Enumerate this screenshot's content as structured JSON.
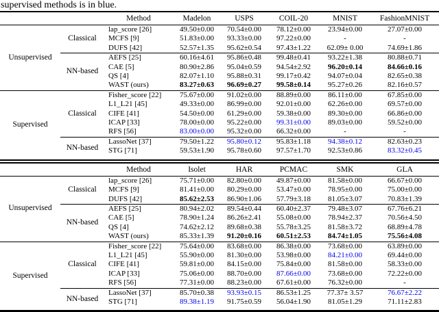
{
  "caption": "supervised methods is in blue.",
  "colors": {
    "highlight_blue": "#0000ee",
    "text": "#000000"
  },
  "tables": [
    {
      "columns": [
        "Method",
        "Madelon",
        "USPS",
        "COIL-20",
        "MNIST",
        "FashionMNIST"
      ],
      "groups": [
        {
          "label": "Unsupervised",
          "subgroups": [
            {
              "label": "Classical",
              "rows": [
                {
                  "method": "lap_score [26]",
                  "values": [
                    {
                      "t": "49.50±0.00"
                    },
                    {
                      "t": "70.54±0.00"
                    },
                    {
                      "t": "78.12±0.00"
                    },
                    {
                      "t": "23.94±0.00"
                    },
                    {
                      "t": "27.07±0.00"
                    }
                  ]
                },
                {
                  "method": "MCFS [9]",
                  "values": [
                    {
                      "t": "51.83±0.00"
                    },
                    {
                      "t": "93.33±0.00"
                    },
                    {
                      "t": "97.22±0.00"
                    },
                    {
                      "t": "-"
                    },
                    {
                      "t": "-"
                    }
                  ]
                },
                {
                  "method": "DUFS [42]",
                  "values": [
                    {
                      "t": "52.57±1.35"
                    },
                    {
                      "t": "95.62±0.54"
                    },
                    {
                      "t": "97.43±1.22"
                    },
                    {
                      "t": "62.09± 0.00"
                    },
                    {
                      "t": "74.69±1.86"
                    }
                  ]
                }
              ]
            },
            {
              "label": "NN-based",
              "rows": [
                {
                  "method": "AEFS [25]",
                  "values": [
                    {
                      "t": "60.16±4.61"
                    },
                    {
                      "t": "95.86±0.48"
                    },
                    {
                      "t": "99.48±0.41"
                    },
                    {
                      "t": "93.22±1.38"
                    },
                    {
                      "t": "80.88±0.71"
                    }
                  ]
                },
                {
                  "method": "CAE [5]",
                  "values": [
                    {
                      "t": "80.90±2.86"
                    },
                    {
                      "t": "95.04±0.59"
                    },
                    {
                      "t": "94.54±2.92"
                    },
                    {
                      "t": "96.20±0.14",
                      "s": "bold"
                    },
                    {
                      "t": "84.66±0.16",
                      "s": "bold"
                    }
                  ]
                },
                {
                  "method": "QS [4]",
                  "values": [
                    {
                      "t": "82.07±1.10"
                    },
                    {
                      "t": "95.88±0.31"
                    },
                    {
                      "t": "99.17±0.42"
                    },
                    {
                      "t": "94.07±0.04"
                    },
                    {
                      "t": "82.65±0.38"
                    }
                  ]
                },
                {
                  "method": "WAST (ours)",
                  "values": [
                    {
                      "t": "83.27±0.63",
                      "s": "bold"
                    },
                    {
                      "t": "96.69±0.27",
                      "s": "bold"
                    },
                    {
                      "t": "99.58±0.14",
                      "s": "bold"
                    },
                    {
                      "t": "95.27±0.26"
                    },
                    {
                      "t": "82.16±0.57"
                    }
                  ]
                }
              ]
            }
          ]
        },
        {
          "label": "Supervised",
          "subgroups": [
            {
              "label": "Classical",
              "rows": [
                {
                  "method": "Fisher_score [22]",
                  "values": [
                    {
                      "t": "75.67±0.00"
                    },
                    {
                      "t": "91.02±0.00"
                    },
                    {
                      "t": "88.89±0.00"
                    },
                    {
                      "t": "86.11±0.00"
                    },
                    {
                      "t": "67.85±0.00"
                    }
                  ]
                },
                {
                  "method": "L1_L21 [45]",
                  "values": [
                    {
                      "t": "49.33±0.00"
                    },
                    {
                      "t": "86.99±0.00"
                    },
                    {
                      "t": "92.01±0.00"
                    },
                    {
                      "t": "62.26±0.00"
                    },
                    {
                      "t": "69.57±0.00"
                    }
                  ]
                },
                {
                  "method": "CIFE [41]",
                  "values": [
                    {
                      "t": "54.50±0.00"
                    },
                    {
                      "t": "61.29±0.00"
                    },
                    {
                      "t": "59.38±0.00"
                    },
                    {
                      "t": "89.30±0.00"
                    },
                    {
                      "t": "66.86±0.00"
                    }
                  ]
                },
                {
                  "method": "ICAP [33]",
                  "values": [
                    {
                      "t": "78.00±0.00"
                    },
                    {
                      "t": "95.22±0.00"
                    },
                    {
                      "t": "99.31±0.00",
                      "s": "blue"
                    },
                    {
                      "t": "89.03±0.00"
                    },
                    {
                      "t": "59.52±0.00"
                    }
                  ]
                },
                {
                  "method": "RFS [56]",
                  "values": [
                    {
                      "t": "83.00±0.00",
                      "s": "blue"
                    },
                    {
                      "t": "95.32±0.00"
                    },
                    {
                      "t": "66.32±0.00"
                    },
                    {
                      "t": "-"
                    },
                    {
                      "t": "-"
                    }
                  ]
                }
              ]
            },
            {
              "label": "NN-based",
              "rows": [
                {
                  "method": "LassoNet [37]",
                  "values": [
                    {
                      "t": "79.50±1.22"
                    },
                    {
                      "t": "95.80±0.12",
                      "s": "blue"
                    },
                    {
                      "t": "95.83±1.18"
                    },
                    {
                      "t": "94.38±0.12",
                      "s": "blue"
                    },
                    {
                      "t": "82.63±0.23"
                    }
                  ]
                },
                {
                  "method": "STG [71]",
                  "values": [
                    {
                      "t": "59.53±1.90"
                    },
                    {
                      "t": "95.78±0.60"
                    },
                    {
                      "t": "97.57±1.70"
                    },
                    {
                      "t": "92.53±0.86"
                    },
                    {
                      "t": "83.32±0.45",
                      "s": "blue"
                    }
                  ]
                }
              ]
            }
          ]
        }
      ]
    },
    {
      "columns": [
        "Method",
        "Isolet",
        "HAR",
        "PCMAC",
        "SMK",
        "GLA"
      ],
      "groups": [
        {
          "label": "Unsupervised",
          "subgroups": [
            {
              "label": "Classical",
              "rows": [
                {
                  "method": "lap_score [26]",
                  "values": [
                    {
                      "t": "75.71±0.00"
                    },
                    {
                      "t": "82.80±0.00"
                    },
                    {
                      "t": "49.87±0.00"
                    },
                    {
                      "t": "81.58±0.00"
                    },
                    {
                      "t": "66.67±0.00"
                    }
                  ]
                },
                {
                  "method": "MCFS [9]",
                  "values": [
                    {
                      "t": "81.41±0.00"
                    },
                    {
                      "t": "80.29±0.00"
                    },
                    {
                      "t": "53.47±0.00"
                    },
                    {
                      "t": "78.95±0.00"
                    },
                    {
                      "t": "75.00±0.00"
                    }
                  ]
                },
                {
                  "method": "DUFS [42]",
                  "values": [
                    {
                      "t": "85.62±2.53",
                      "s": "bold"
                    },
                    {
                      "t": "86.90±1.06"
                    },
                    {
                      "t": "57.79±3.18"
                    },
                    {
                      "t": "81.05±3.07"
                    },
                    {
                      "t": "70.83±1.39"
                    }
                  ]
                }
              ]
            },
            {
              "label": "NN-based",
              "rows": [
                {
                  "method": "AEFS [25]",
                  "values": [
                    {
                      "t": "80.94±2.02"
                    },
                    {
                      "t": "89.54±0.44"
                    },
                    {
                      "t": "60.40±2.37"
                    },
                    {
                      "t": "79.48±3.07"
                    },
                    {
                      "t": "67.76±6.21"
                    }
                  ]
                },
                {
                  "method": "CAE [5]",
                  "values": [
                    {
                      "t": "78.90±1.24"
                    },
                    {
                      "t": "86.26±2.41"
                    },
                    {
                      "t": "55.08±0.00"
                    },
                    {
                      "t": "78.94±2.37"
                    },
                    {
                      "t": "70.56±4.50"
                    }
                  ]
                },
                {
                  "method": "QS [4]",
                  "values": [
                    {
                      "t": "74.62±2.12"
                    },
                    {
                      "t": "89.68±0.38"
                    },
                    {
                      "t": "55.78±3.25"
                    },
                    {
                      "t": "81.58±3.72"
                    },
                    {
                      "t": "68.89±4.78"
                    }
                  ]
                },
                {
                  "method": "WAST (ours)",
                  "values": [
                    {
                      "t": "85.33±1.39"
                    },
                    {
                      "t": "91.20±0.16",
                      "s": "bold"
                    },
                    {
                      "t": "60.51±2.53",
                      "s": "bold"
                    },
                    {
                      "t": "84.74±1.05",
                      "s": "bold"
                    },
                    {
                      "t": "75.56±4.08",
                      "s": "bold"
                    }
                  ]
                }
              ]
            }
          ]
        },
        {
          "label": "Supervised",
          "subgroups": [
            {
              "label": "Classical",
              "rows": [
                {
                  "method": "Fisher_score [22]",
                  "values": [
                    {
                      "t": "75.64±0.00"
                    },
                    {
                      "t": "83.68±0.00"
                    },
                    {
                      "t": "86.38±0.00"
                    },
                    {
                      "t": "73.68±0.00"
                    },
                    {
                      "t": "63.89±0.00"
                    }
                  ]
                },
                {
                  "method": "L1_L21 [45]",
                  "values": [
                    {
                      "t": "55.90±0.00"
                    },
                    {
                      "t": "81.30±0.00"
                    },
                    {
                      "t": "53.98±0.00"
                    },
                    {
                      "t": "84.21±0.00",
                      "s": "blue"
                    },
                    {
                      "t": "69.44±0.00"
                    }
                  ]
                },
                {
                  "method": "CIFE [41]",
                  "values": [
                    {
                      "t": "59.81±0.00"
                    },
                    {
                      "t": "84.15±0.00"
                    },
                    {
                      "t": "75.84±0.00"
                    },
                    {
                      "t": "81.58±0.00"
                    },
                    {
                      "t": "58.33±0.00"
                    }
                  ]
                },
                {
                  "method": "ICAP [33]",
                  "values": [
                    {
                      "t": "75.06±0.00"
                    },
                    {
                      "t": "88.70±0.00"
                    },
                    {
                      "t": "87.66±0.00",
                      "s": "blue"
                    },
                    {
                      "t": "73.68±0.00"
                    },
                    {
                      "t": "72.22±0.00"
                    }
                  ]
                },
                {
                  "method": "RFS [56]",
                  "values": [
                    {
                      "t": "77.31±0.00"
                    },
                    {
                      "t": "88.23±0.00"
                    },
                    {
                      "t": "67.61±0.00"
                    },
                    {
                      "t": "76.32±0.00"
                    },
                    {
                      "t": "-"
                    }
                  ]
                }
              ]
            },
            {
              "label": "NN-based",
              "rows": [
                {
                  "method": "LassoNet [37]",
                  "values": [
                    {
                      "t": "85.70±0.38"
                    },
                    {
                      "t": "93.93±0.15",
                      "s": "blue"
                    },
                    {
                      "t": "86.53±1.25"
                    },
                    {
                      "t": "77.37± 3.57"
                    },
                    {
                      "t": "76.67±2.22",
                      "s": "blue"
                    }
                  ]
                },
                {
                  "method": "STG [71]",
                  "values": [
                    {
                      "t": "89.38±1.19",
                      "s": "blue"
                    },
                    {
                      "t": "91.75±0.59"
                    },
                    {
                      "t": "56.04±1.90"
                    },
                    {
                      "t": "81.05±1.29"
                    },
                    {
                      "t": "71.11±2.83"
                    }
                  ]
                }
              ]
            }
          ]
        }
      ]
    }
  ]
}
